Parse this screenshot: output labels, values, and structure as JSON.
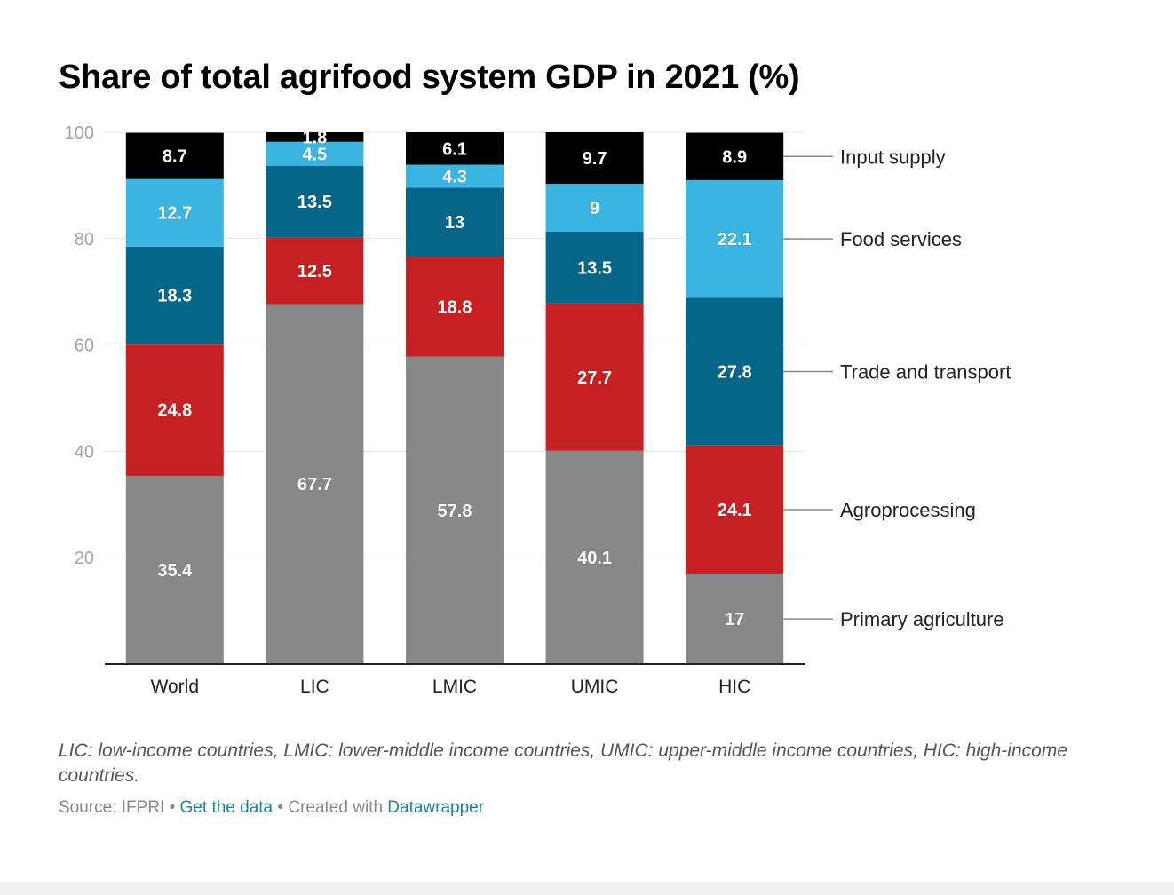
{
  "chart_data": {
    "type": "bar",
    "stacked": true,
    "title": "Share of total agrifood system GDP in 2021 (%)",
    "xlabel": "",
    "ylabel": "",
    "ylim": [
      0,
      100
    ],
    "yticks": [
      20,
      40,
      60,
      80,
      100
    ],
    "grid": true,
    "legend_placement": "right (inline labels)",
    "categories": [
      "World",
      "LIC",
      "LMIC",
      "UMIC",
      "HIC"
    ],
    "series": [
      {
        "name": "Primary agriculture",
        "color": "#888888",
        "values": [
          35.4,
          67.7,
          57.8,
          40.1,
          17
        ]
      },
      {
        "name": "Agroprocessing",
        "color": "#c72022",
        "values": [
          24.8,
          12.5,
          18.8,
          27.7,
          24.1
        ]
      },
      {
        "name": "Trade and transport",
        "color": "#05668a",
        "values": [
          18.3,
          13.5,
          13,
          13.5,
          27.8
        ]
      },
      {
        "name": "Food services",
        "color": "#3ab4e0",
        "values": [
          12.7,
          4.5,
          4.3,
          9,
          22.1
        ]
      },
      {
        "name": "Input supply",
        "color": "#000000",
        "values": [
          8.7,
          1.8,
          6.1,
          9.7,
          8.9
        ]
      }
    ]
  },
  "notes": "LIC: low-income countries, LMIC: lower-middle income countries, UMIC: upper-middle income countries, HIC: high-income countries.",
  "footer": {
    "source_label": "Source: IFPRI",
    "separator": " • ",
    "get_data_link": "Get the data",
    "created_with": "Created with",
    "datawrapper_link": "Datawrapper"
  }
}
